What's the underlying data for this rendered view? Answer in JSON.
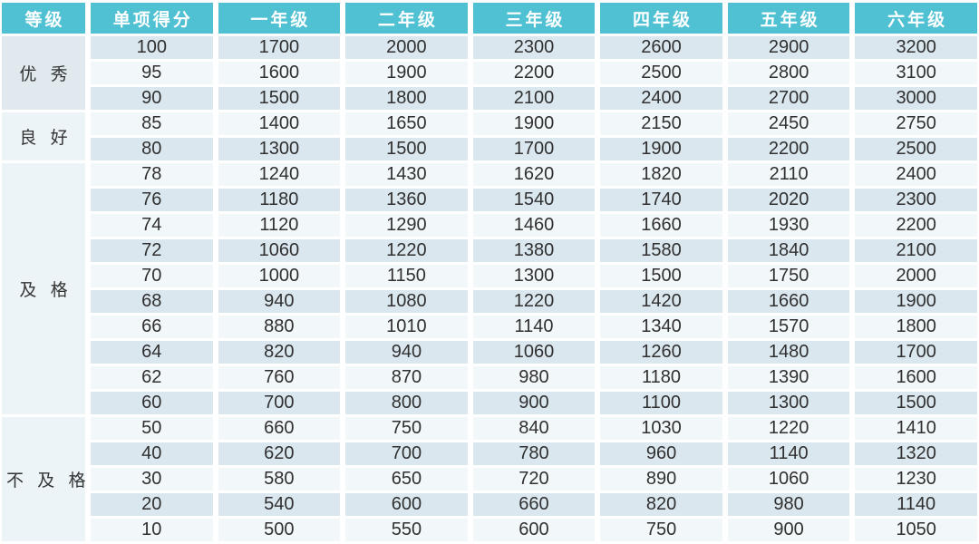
{
  "colors": {
    "header_bg": "#4fc1d3",
    "header_text": "#ffffff",
    "row_band_dark": "#dbe7ef",
    "row_band_light": "#f2f7fa",
    "grade_cell_dark": "#dfe9ee",
    "grade_cell_light": "#edf4f8",
    "body_text": "#303030",
    "gutter": "#ffffff"
  },
  "chart_data": {
    "type": "table",
    "columns": [
      "等级",
      "单项得分",
      "一年级",
      "二年级",
      "三年级",
      "四年级",
      "五年级",
      "六年级"
    ],
    "groups": [
      {
        "grade": "优 秀",
        "rows": [
          [
            100,
            1700,
            2000,
            2300,
            2600,
            2900,
            3200
          ],
          [
            95,
            1600,
            1900,
            2200,
            2500,
            2800,
            3100
          ],
          [
            90,
            1500,
            1800,
            2100,
            2400,
            2700,
            3000
          ]
        ]
      },
      {
        "grade": "良 好",
        "rows": [
          [
            85,
            1400,
            1650,
            1900,
            2150,
            2450,
            2750
          ],
          [
            80,
            1300,
            1500,
            1700,
            1900,
            2200,
            2500
          ]
        ]
      },
      {
        "grade": "及 格",
        "rows": [
          [
            78,
            1240,
            1430,
            1620,
            1820,
            2110,
            2400
          ],
          [
            76,
            1180,
            1360,
            1540,
            1740,
            2020,
            2300
          ],
          [
            74,
            1120,
            1290,
            1460,
            1660,
            1930,
            2200
          ],
          [
            72,
            1060,
            1220,
            1380,
            1580,
            1840,
            2100
          ],
          [
            70,
            1000,
            1150,
            1300,
            1500,
            1750,
            2000
          ],
          [
            68,
            940,
            1080,
            1220,
            1420,
            1660,
            1900
          ],
          [
            66,
            880,
            1010,
            1140,
            1340,
            1570,
            1800
          ],
          [
            64,
            820,
            940,
            1060,
            1260,
            1480,
            1700
          ],
          [
            62,
            760,
            870,
            980,
            1180,
            1390,
            1600
          ],
          [
            60,
            700,
            800,
            900,
            1100,
            1300,
            1500
          ]
        ]
      },
      {
        "grade": "不 及 格",
        "rows": [
          [
            50,
            660,
            750,
            840,
            1030,
            1220,
            1410
          ],
          [
            40,
            620,
            700,
            780,
            960,
            1140,
            1320
          ],
          [
            30,
            580,
            650,
            720,
            890,
            1060,
            1230
          ],
          [
            20,
            540,
            600,
            660,
            820,
            980,
            1140
          ],
          [
            10,
            500,
            550,
            600,
            750,
            900,
            1050
          ]
        ]
      }
    ]
  }
}
